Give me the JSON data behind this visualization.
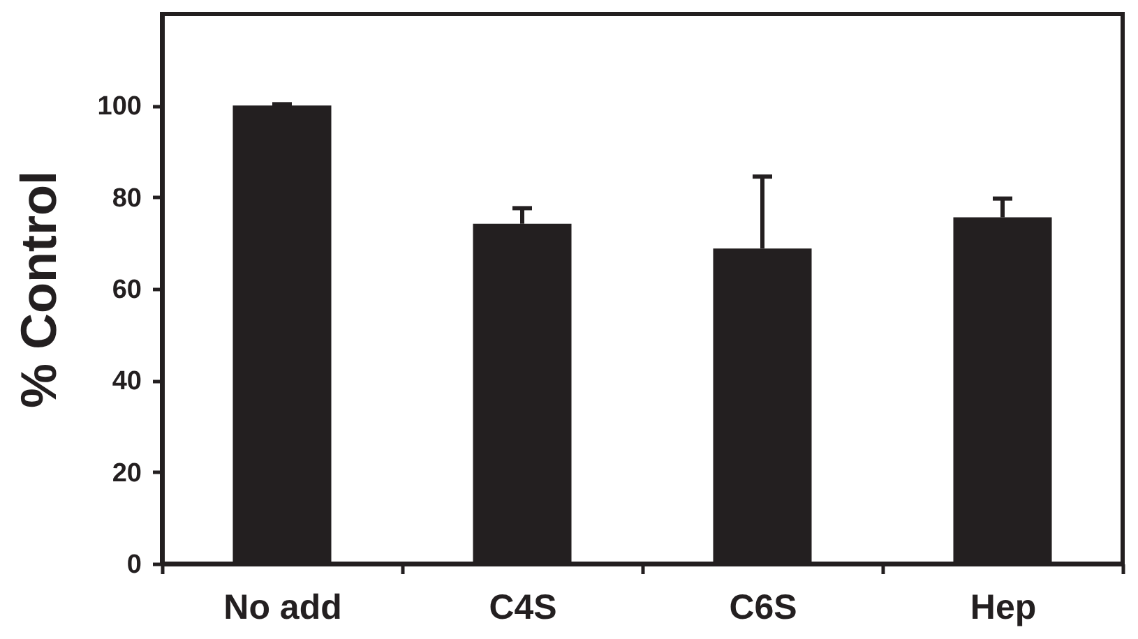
{
  "chart_data": {
    "type": "bar",
    "ylabel": "% Control",
    "categories": [
      "No add",
      "C4S",
      "C6S",
      "Hep"
    ],
    "values": [
      100,
      74.2,
      68.8,
      75.6
    ],
    "errors": [
      0.3,
      3.4,
      15.7,
      4.1
    ],
    "color": "#231f20",
    "ylim": [
      0,
      120
    ],
    "yticks": [
      0,
      20,
      40,
      60,
      80,
      100
    ],
    "grid": false
  }
}
